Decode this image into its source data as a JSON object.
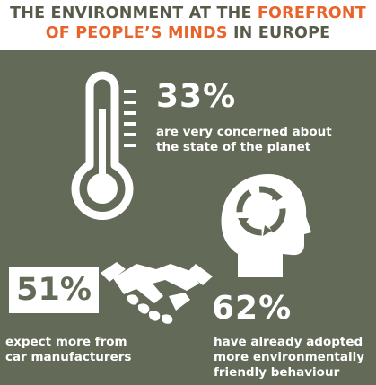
{
  "title": {
    "line1_prefix": "THE ENVIRONMENT AT THE ",
    "line1_accent": "FOREFRONT",
    "line2_accent": "OF PEOPLE’S MINDS",
    "line2_suffix": " IN EUROPE"
  },
  "stats": [
    {
      "value": "33%",
      "text_lines": [
        "are very concerned about",
        "the state of the planet"
      ],
      "icon": "thermometer-icon"
    },
    {
      "value": "51%",
      "text_lines": [
        "expect more from",
        "car manufacturers"
      ],
      "icon": "handshake-icon"
    },
    {
      "value": "62%",
      "text_lines": [
        "have already adopted",
        "more environmentally",
        "friendly behaviour"
      ],
      "icon": "head-recycle-icon"
    }
  ],
  "colors": {
    "background": "#636a57",
    "accent": "#e8642c",
    "title_dark": "#565b4a",
    "foreground": "#ffffff"
  }
}
